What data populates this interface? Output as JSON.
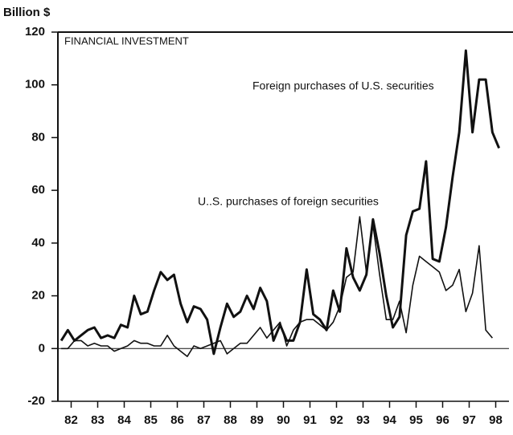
{
  "chart_data": {
    "type": "line",
    "title": "FINANCIAL INVESTMENT",
    "y_label": "Billion $",
    "x": [
      1982.125,
      1982.375,
      1982.625,
      1982.875,
      1983.125,
      1983.375,
      1983.625,
      1983.875,
      1984.125,
      1984.375,
      1984.625,
      1984.875,
      1985.125,
      1985.375,
      1985.625,
      1985.875,
      1986.125,
      1986.375,
      1986.625,
      1986.875,
      1987.125,
      1987.375,
      1987.625,
      1987.875,
      1988.125,
      1988.375,
      1988.625,
      1988.875,
      1989.125,
      1989.375,
      1989.625,
      1989.875,
      1990.125,
      1990.375,
      1990.625,
      1990.875,
      1991.125,
      1991.375,
      1991.625,
      1991.875,
      1992.125,
      1992.375,
      1992.625,
      1992.875,
      1993.125,
      1993.375,
      1993.625,
      1993.875,
      1994.125,
      1994.375,
      1994.625,
      1994.875,
      1995.125,
      1995.375,
      1995.625,
      1995.875,
      1996.125,
      1996.375,
      1996.625,
      1996.875,
      1997.125,
      1997.375,
      1997.625,
      1997.875,
      1998.125,
      1998.375,
      1998.625
    ],
    "series": [
      {
        "name": "Foreign purchases of U.S. securities",
        "color": "#111111",
        "values": [
          3,
          7,
          3,
          5,
          7,
          8,
          4,
          5,
          4,
          9,
          8,
          20,
          13,
          14,
          22,
          29,
          26,
          28,
          17,
          10,
          16,
          15,
          11,
          -2,
          8,
          17,
          12,
          14,
          20,
          15,
          23,
          18,
          3,
          9,
          3,
          3,
          10,
          30,
          13,
          11,
          7,
          22,
          14,
          38,
          27,
          22,
          28,
          49,
          36,
          20,
          8,
          12,
          43,
          52,
          53,
          71,
          34,
          33,
          46,
          65,
          82,
          113,
          82,
          102,
          102,
          82,
          76
        ]
      },
      {
        "name": "U..S.  purchases of foreign securities",
        "color": "#111111",
        "values": [
          0,
          0,
          3,
          3,
          1,
          2,
          1,
          1,
          -1,
          0,
          1,
          3,
          2,
          2,
          1,
          1,
          5,
          1,
          -1,
          -3,
          1,
          0,
          1,
          2,
          3,
          -2,
          0,
          2,
          2,
          5,
          8,
          4,
          7,
          10,
          1,
          7,
          10,
          11,
          11,
          9,
          7,
          10,
          16,
          27,
          29,
          50,
          29,
          47,
          28,
          11,
          11,
          18,
          6,
          24,
          35,
          33,
          31,
          29,
          22,
          24,
          30,
          14,
          21,
          39,
          7,
          4,
          null
        ]
      }
    ],
    "xlim": [
      1982,
      1999
    ],
    "xticks": [
      {
        "value": 1982.5,
        "label": "82"
      },
      {
        "value": 1983.5,
        "label": "83"
      },
      {
        "value": 1984.5,
        "label": "84"
      },
      {
        "value": 1985.5,
        "label": "85"
      },
      {
        "value": 1986.5,
        "label": "86"
      },
      {
        "value": 1987.5,
        "label": "87"
      },
      {
        "value": 1988.5,
        "label": "88"
      },
      {
        "value": 1989.5,
        "label": "89"
      },
      {
        "value": 1990.5,
        "label": "90"
      },
      {
        "value": 1991.5,
        "label": "91"
      },
      {
        "value": 1992.5,
        "label": "92"
      },
      {
        "value": 1993.5,
        "label": "93"
      },
      {
        "value": 1994.5,
        "label": "94"
      },
      {
        "value": 1995.5,
        "label": "95"
      },
      {
        "value": 1996.5,
        "label": "96"
      },
      {
        "value": 1997.5,
        "label": "97"
      },
      {
        "value": 1998.5,
        "label": "98"
      }
    ],
    "ylim": [
      -20,
      120
    ],
    "yticks": [
      -20,
      0,
      20,
      40,
      60,
      80,
      100,
      120
    ]
  }
}
